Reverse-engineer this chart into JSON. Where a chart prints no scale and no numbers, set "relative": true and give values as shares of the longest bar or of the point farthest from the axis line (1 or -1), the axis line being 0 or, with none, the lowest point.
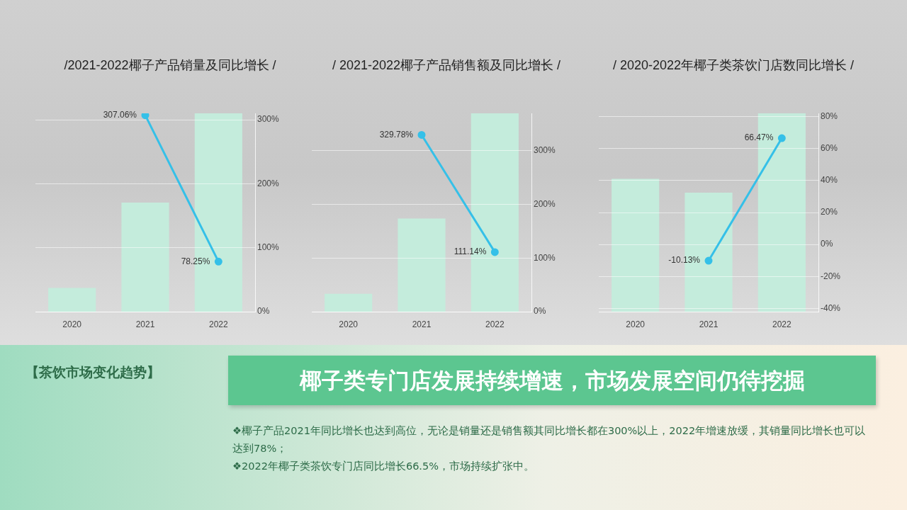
{
  "chart_data": [
    {
      "type": "bar",
      "title": "/2021-2022椰子产品销量及同比增长 /",
      "categories": [
        null,
        null,
        null
      ],
      "relative": true,
      "color": "#c4ecdc",
      "values": [
        0.12,
        0.55,
        1
      ]
    },
    {
      "type": "line",
      "categories": [
        "2020",
        "2021",
        "2022"
      ],
      "grid": "y",
      "ylim": [
        0,
        310
      ],
      "yticks": [
        {
          "value": 0,
          "label": "0%"
        },
        {
          "value": 100,
          "label": "100%"
        },
        {
          "value": 200,
          "label": "200%"
        },
        {
          "value": 300,
          "label": "300%"
        }
      ],
      "marker": "circle",
      "color": "#35c0e8",
      "values": [
        null,
        307.06,
        78.25
      ],
      "value_labels": [
        null,
        "307.06%",
        "78.25%"
      ]
    },
    {
      "type": "bar",
      "title": "/ 2021-2022椰子产品销售额及同比增长  /",
      "categories": [
        null,
        null,
        null
      ],
      "relative": true,
      "color": "#c4ecdc",
      "values": [
        0.09,
        0.47,
        1
      ]
    },
    {
      "type": "line",
      "categories": [
        "2020",
        "2021",
        "2022"
      ],
      "grid": "y",
      "ylim": [
        0,
        370
      ],
      "yticks": [
        {
          "value": 0,
          "label": "0%"
        },
        {
          "value": 100,
          "label": "100%"
        },
        {
          "value": 200,
          "label": "200%"
        },
        {
          "value": 300,
          "label": "300%"
        }
      ],
      "marker": "circle",
      "color": "#35c0e8",
      "values": [
        null,
        329.78,
        111.14
      ],
      "value_labels": [
        null,
        "329.78%",
        "111.14%"
      ]
    },
    {
      "type": "bar",
      "title": "/ 2020-2022年椰子类茶饮门店数同比增长 /",
      "categories": [
        null,
        null,
        null
      ],
      "relative": true,
      "color": "#c4ecdc",
      "values": [
        0.67,
        0.6,
        1
      ]
    },
    {
      "type": "line",
      "categories": [
        "2020",
        "2021",
        "2022"
      ],
      "grid": "y",
      "ylim": [
        -42,
        82
      ],
      "yticks": [
        {
          "value": -40,
          "label": "-40%"
        },
        {
          "value": -20,
          "label": "-20%"
        },
        {
          "value": 0,
          "label": "0%"
        },
        {
          "value": 20,
          "label": "20%"
        },
        {
          "value": 40,
          "label": "40%"
        },
        {
          "value": 60,
          "label": "60%"
        },
        {
          "value": 80,
          "label": "80%"
        }
      ],
      "marker": "circle",
      "color": "#35c0e8",
      "values": [
        null,
        -10.13,
        66.47
      ],
      "value_labels": [
        null,
        "-10.13%",
        "66.47%"
      ]
    },
    {
      "type": "other",
      "title": "【茶饮市场变化趋势】",
      "subtitle": "椰子类专门店发展持续增速，市场发展空间仍待挖掘",
      "annotations": [
        "❖椰子产品2021年同比增长也达到高位，无论是销量还是销售额其同比增长都在300%以上，2022年增速放缓，其销量同比增长也可以达到78%；",
        "❖2022年椰子类茶饮专门店同比增长66.5%，市场持续扩张中。"
      ]
    }
  ]
}
